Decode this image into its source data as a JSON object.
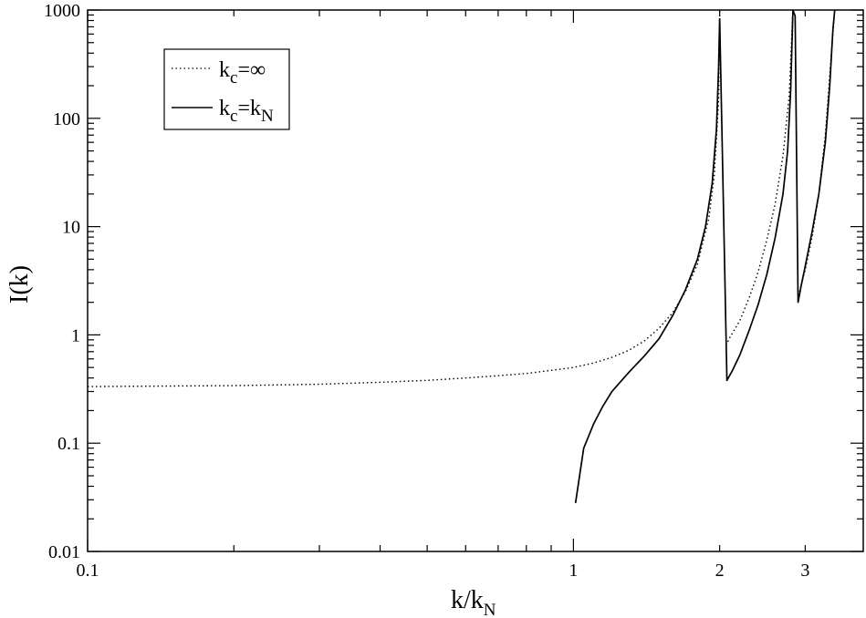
{
  "chart_data": {
    "type": "line",
    "xscale": "log",
    "yscale": "log",
    "xlim": [
      0.1,
      3.95
    ],
    "ylim": [
      0.01,
      1000
    ],
    "x_tick_labels": [
      "0.1",
      "1",
      "2",
      "3"
    ],
    "y_tick_labels": [
      "0.01",
      "0.1",
      "1",
      "10",
      "100",
      "1000"
    ],
    "xlabel": {
      "main": "k/k",
      "sub": "N"
    },
    "ylabel": "I(k)",
    "grid": false,
    "legend_position": "top-left",
    "series": [
      {
        "name": {
          "main": "k",
          "sub": "c",
          "rest": "=∞"
        },
        "style": "dotted",
        "color": "#000000",
        "segments": [
          [
            [
              0.1,
              0.333
            ],
            [
              0.2,
              0.34
            ],
            [
              0.3,
              0.35
            ],
            [
              0.4,
              0.365
            ],
            [
              0.5,
              0.38
            ],
            [
              0.6,
              0.4
            ],
            [
              0.7,
              0.42
            ],
            [
              0.8,
              0.44
            ],
            [
              0.9,
              0.47
            ],
            [
              1.0,
              0.5
            ],
            [
              1.1,
              0.55
            ],
            [
              1.2,
              0.62
            ],
            [
              1.3,
              0.72
            ],
            [
              1.4,
              0.88
            ],
            [
              1.5,
              1.15
            ],
            [
              1.6,
              1.6
            ],
            [
              1.7,
              2.5
            ],
            [
              1.8,
              4.5
            ],
            [
              1.9,
              12
            ],
            [
              1.95,
              30
            ],
            [
              1.99,
              150
            ],
            [
              2.0,
              1000
            ]
          ],
          [
            [
              2.06,
              0.8
            ],
            [
              2.1,
              0.95
            ],
            [
              2.2,
              1.35
            ],
            [
              2.3,
              2.2
            ],
            [
              2.4,
              3.8
            ],
            [
              2.5,
              7.5
            ],
            [
              2.6,
              16
            ],
            [
              2.7,
              45
            ],
            [
              2.78,
              160
            ],
            [
              2.83,
              1000
            ]
          ],
          [
            [
              2.92,
              2.5
            ],
            [
              3.0,
              4
            ],
            [
              3.1,
              8
            ],
            [
              3.2,
              20
            ],
            [
              3.3,
              70
            ],
            [
              3.38,
              300
            ],
            [
              3.45,
              1000
            ]
          ]
        ]
      },
      {
        "name": {
          "main": "k",
          "sub": "c",
          "rest": "=k",
          "sub2": "N"
        },
        "style": "solid",
        "color": "#000000",
        "segments": [
          [
            [
              1.01,
              0.028
            ],
            [
              1.05,
              0.09
            ],
            [
              1.1,
              0.15
            ],
            [
              1.15,
              0.22
            ],
            [
              1.2,
              0.3
            ],
            [
              1.3,
              0.45
            ],
            [
              1.4,
              0.64
            ],
            [
              1.5,
              0.92
            ],
            [
              1.6,
              1.5
            ],
            [
              1.7,
              2.6
            ],
            [
              1.8,
              5
            ],
            [
              1.87,
              10
            ],
            [
              1.93,
              25
            ],
            [
              1.97,
              80
            ],
            [
              1.99,
              300
            ],
            [
              2.0,
              830
            ],
            [
              2.07,
              0.38
            ],
            [
              2.12,
              0.46
            ],
            [
              2.2,
              0.65
            ],
            [
              2.3,
              1.1
            ],
            [
              2.4,
              1.9
            ],
            [
              2.5,
              3.6
            ],
            [
              2.6,
              7.8
            ],
            [
              2.7,
              20
            ],
            [
              2.76,
              50
            ],
            [
              2.8,
              180
            ],
            [
              2.83,
              1000
            ],
            [
              2.86,
              880
            ],
            [
              2.9,
              2.0
            ],
            [
              2.95,
              3.0
            ],
            [
              3.0,
              4.3
            ],
            [
              3.1,
              9
            ],
            [
              3.2,
              20
            ],
            [
              3.3,
              60
            ],
            [
              3.37,
              200
            ],
            [
              3.42,
              650
            ],
            [
              3.45,
              1000
            ]
          ]
        ]
      }
    ]
  }
}
